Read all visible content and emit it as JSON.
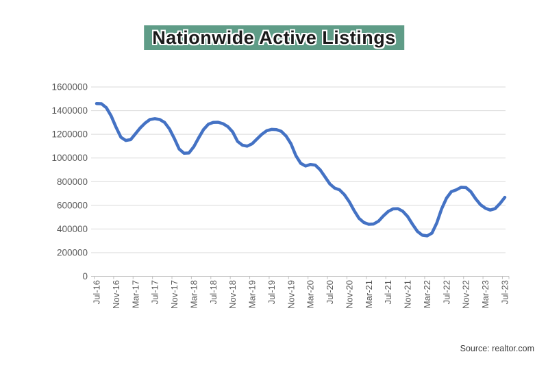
{
  "title": "Nationwide Active Listings",
  "source": "Source: realtor.com",
  "colors": {
    "line": "#4472C4",
    "title_highlight": "#5F9C87",
    "gridline": "#D9D9D9",
    "axis": "#BFBFBF",
    "tick_label": "#595959"
  },
  "chart_data": {
    "type": "line",
    "title": "Nationwide Active Listings",
    "xlabel": "",
    "ylabel": "",
    "legend": "none",
    "grid": "horizontal",
    "ylim": [
      0,
      1600000
    ],
    "y_tick_step": 200000,
    "y_tick_labels": [
      "0",
      "200000",
      "400000",
      "600000",
      "800000",
      "1000000",
      "1200000",
      "1400000",
      "1600000"
    ],
    "x_tick_labels": [
      "Jul-16",
      "Nov-16",
      "Mar-17",
      "Jul-17",
      "Nov-17",
      "Mar-18",
      "Jul-18",
      "Nov-18",
      "Mar-19",
      "Jul-19",
      "Nov-19",
      "Mar-20",
      "Jul-20",
      "Nov-20",
      "Mar-21",
      "Jul-21",
      "Nov-21",
      "Mar-22",
      "Jul-22",
      "Nov-22",
      "Mar-23",
      "Jul-23"
    ],
    "x_label_every_n_points": 4,
    "months": [
      "Jul-16",
      "Aug-16",
      "Sep-16",
      "Oct-16",
      "Nov-16",
      "Dec-16",
      "Jan-17",
      "Feb-17",
      "Mar-17",
      "Apr-17",
      "May-17",
      "Jun-17",
      "Jul-17",
      "Aug-17",
      "Sep-17",
      "Oct-17",
      "Nov-17",
      "Dec-17",
      "Jan-18",
      "Feb-18",
      "Mar-18",
      "Apr-18",
      "May-18",
      "Jun-18",
      "Jul-18",
      "Aug-18",
      "Sep-18",
      "Oct-18",
      "Nov-18",
      "Dec-18",
      "Jan-19",
      "Feb-19",
      "Mar-19",
      "Apr-19",
      "May-19",
      "Jun-19",
      "Jul-19",
      "Aug-19",
      "Sep-19",
      "Oct-19",
      "Nov-19",
      "Dec-19",
      "Jan-20",
      "Feb-20",
      "Mar-20",
      "Apr-20",
      "May-20",
      "Jun-20",
      "Jul-20",
      "Aug-20",
      "Sep-20",
      "Oct-20",
      "Nov-20",
      "Dec-20",
      "Jan-21",
      "Feb-21",
      "Mar-21",
      "Apr-21",
      "May-21",
      "Jun-21",
      "Jul-21",
      "Aug-21",
      "Sep-21",
      "Oct-21",
      "Nov-21",
      "Dec-21",
      "Jan-22",
      "Feb-22",
      "Mar-22",
      "Apr-22",
      "May-22",
      "Jun-22",
      "Jul-22",
      "Aug-22",
      "Sep-22",
      "Oct-22",
      "Nov-22",
      "Dec-22",
      "Jan-23",
      "Feb-23",
      "Mar-23",
      "Apr-23",
      "May-23",
      "Jun-23",
      "Jul-23"
    ],
    "values": [
      1460000,
      1458000,
      1425000,
      1355000,
      1260000,
      1175000,
      1148000,
      1155000,
      1205000,
      1255000,
      1295000,
      1325000,
      1332000,
      1325000,
      1300000,
      1245000,
      1165000,
      1075000,
      1040000,
      1042000,
      1095000,
      1170000,
      1240000,
      1285000,
      1300000,
      1302000,
      1290000,
      1265000,
      1220000,
      1140000,
      1108000,
      1100000,
      1120000,
      1160000,
      1200000,
      1230000,
      1242000,
      1240000,
      1225000,
      1185000,
      1120000,
      1020000,
      955000,
      932000,
      945000,
      940000,
      900000,
      840000,
      780000,
      745000,
      730000,
      690000,
      630000,
      555000,
      490000,
      455000,
      440000,
      442000,
      465000,
      510000,
      548000,
      570000,
      572000,
      550000,
      505000,
      440000,
      380000,
      348000,
      342000,
      365000,
      450000,
      570000,
      660000,
      715000,
      730000,
      752000,
      750000,
      715000,
      655000,
      605000,
      575000,
      560000,
      572000,
      615000,
      668000
    ],
    "line_color": "#4472C4",
    "line_width": 4.5
  }
}
